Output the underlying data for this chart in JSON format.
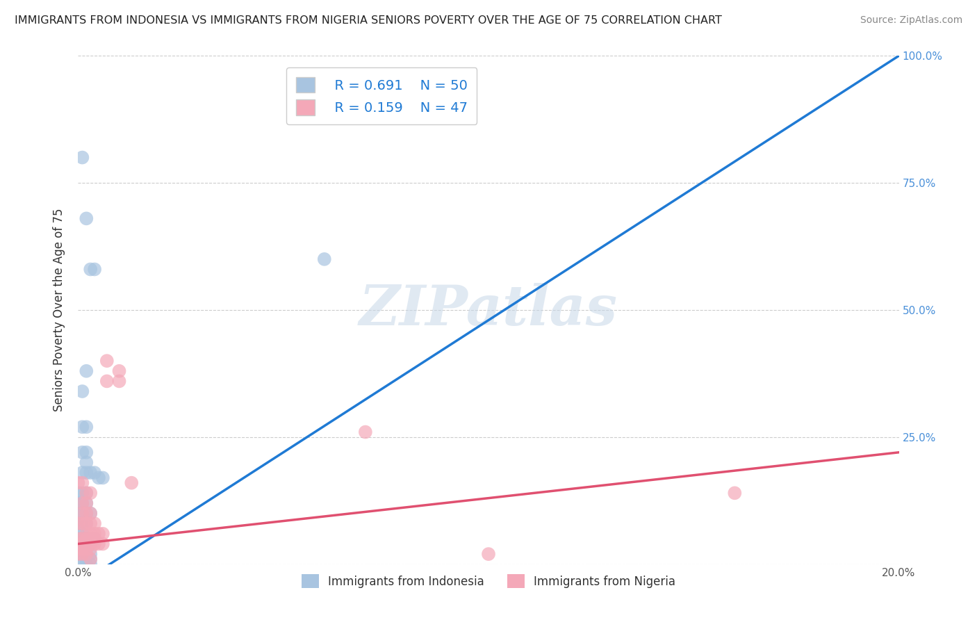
{
  "title": "IMMIGRANTS FROM INDONESIA VS IMMIGRANTS FROM NIGERIA SENIORS POVERTY OVER THE AGE OF 75 CORRELATION CHART",
  "source": "Source: ZipAtlas.com",
  "ylabel": "Seniors Poverty Over the Age of 75",
  "xlim": [
    0.0,
    0.2
  ],
  "ylim": [
    0.0,
    1.0
  ],
  "indonesia_color": "#a8c4e0",
  "nigeria_color": "#f4a8b8",
  "indonesia_R": 0.691,
  "indonesia_N": 50,
  "nigeria_R": 0.159,
  "nigeria_N": 47,
  "indonesia_line_color": "#1f7ad4",
  "nigeria_line_color": "#e05070",
  "indonesia_line": [
    [
      0.0,
      -0.04
    ],
    [
      0.2,
      1.0
    ]
  ],
  "nigeria_line": [
    [
      0.0,
      0.04
    ],
    [
      0.2,
      0.22
    ]
  ],
  "watermark_text": "ZIPatlas",
  "background_color": "#ffffff",
  "grid_color": "#cccccc",
  "indonesia_scatter": [
    [
      0.001,
      0.8
    ],
    [
      0.002,
      0.68
    ],
    [
      0.003,
      0.58
    ],
    [
      0.004,
      0.58
    ],
    [
      0.002,
      0.38
    ],
    [
      0.001,
      0.34
    ],
    [
      0.001,
      0.27
    ],
    [
      0.002,
      0.27
    ],
    [
      0.001,
      0.22
    ],
    [
      0.002,
      0.22
    ],
    [
      0.002,
      0.2
    ],
    [
      0.001,
      0.18
    ],
    [
      0.002,
      0.18
    ],
    [
      0.003,
      0.18
    ],
    [
      0.004,
      0.18
    ],
    [
      0.0,
      0.14
    ],
    [
      0.001,
      0.14
    ],
    [
      0.002,
      0.14
    ],
    [
      0.0,
      0.12
    ],
    [
      0.001,
      0.12
    ],
    [
      0.002,
      0.12
    ],
    [
      0.0,
      0.1
    ],
    [
      0.001,
      0.1
    ],
    [
      0.002,
      0.1
    ],
    [
      0.003,
      0.1
    ],
    [
      0.0,
      0.08
    ],
    [
      0.001,
      0.08
    ],
    [
      0.002,
      0.08
    ],
    [
      0.0,
      0.06
    ],
    [
      0.001,
      0.06
    ],
    [
      0.0,
      0.05
    ],
    [
      0.001,
      0.05
    ],
    [
      0.002,
      0.05
    ],
    [
      0.0,
      0.04
    ],
    [
      0.001,
      0.04
    ],
    [
      0.002,
      0.04
    ],
    [
      0.0,
      0.03
    ],
    [
      0.001,
      0.03
    ],
    [
      0.0,
      0.02
    ],
    [
      0.001,
      0.02
    ],
    [
      0.003,
      0.02
    ],
    [
      0.005,
      0.17
    ],
    [
      0.006,
      0.17
    ],
    [
      0.004,
      0.05
    ],
    [
      0.0,
      0.0
    ],
    [
      0.001,
      0.0
    ],
    [
      0.003,
      0.0
    ],
    [
      0.002,
      0.0
    ],
    [
      0.06,
      0.6
    ],
    [
      0.003,
      0.01
    ]
  ],
  "nigeria_scatter": [
    [
      0.0,
      0.16
    ],
    [
      0.001,
      0.16
    ],
    [
      0.002,
      0.14
    ],
    [
      0.003,
      0.14
    ],
    [
      0.001,
      0.12
    ],
    [
      0.002,
      0.12
    ],
    [
      0.001,
      0.1
    ],
    [
      0.002,
      0.1
    ],
    [
      0.003,
      0.1
    ],
    [
      0.0,
      0.08
    ],
    [
      0.001,
      0.08
    ],
    [
      0.002,
      0.08
    ],
    [
      0.003,
      0.08
    ],
    [
      0.004,
      0.08
    ],
    [
      0.002,
      0.06
    ],
    [
      0.003,
      0.06
    ],
    [
      0.004,
      0.06
    ],
    [
      0.005,
      0.06
    ],
    [
      0.006,
      0.06
    ],
    [
      0.0,
      0.05
    ],
    [
      0.001,
      0.05
    ],
    [
      0.002,
      0.05
    ],
    [
      0.003,
      0.05
    ],
    [
      0.004,
      0.05
    ],
    [
      0.0,
      0.04
    ],
    [
      0.001,
      0.04
    ],
    [
      0.002,
      0.04
    ],
    [
      0.003,
      0.04
    ],
    [
      0.004,
      0.04
    ],
    [
      0.005,
      0.04
    ],
    [
      0.006,
      0.04
    ],
    [
      0.0,
      0.03
    ],
    [
      0.001,
      0.03
    ],
    [
      0.002,
      0.03
    ],
    [
      0.003,
      0.03
    ],
    [
      0.0,
      0.02
    ],
    [
      0.001,
      0.02
    ],
    [
      0.002,
      0.02
    ],
    [
      0.007,
      0.4
    ],
    [
      0.007,
      0.36
    ],
    [
      0.01,
      0.38
    ],
    [
      0.01,
      0.36
    ],
    [
      0.013,
      0.16
    ],
    [
      0.07,
      0.26
    ],
    [
      0.1,
      0.02
    ],
    [
      0.16,
      0.14
    ],
    [
      0.003,
      0.01
    ]
  ]
}
